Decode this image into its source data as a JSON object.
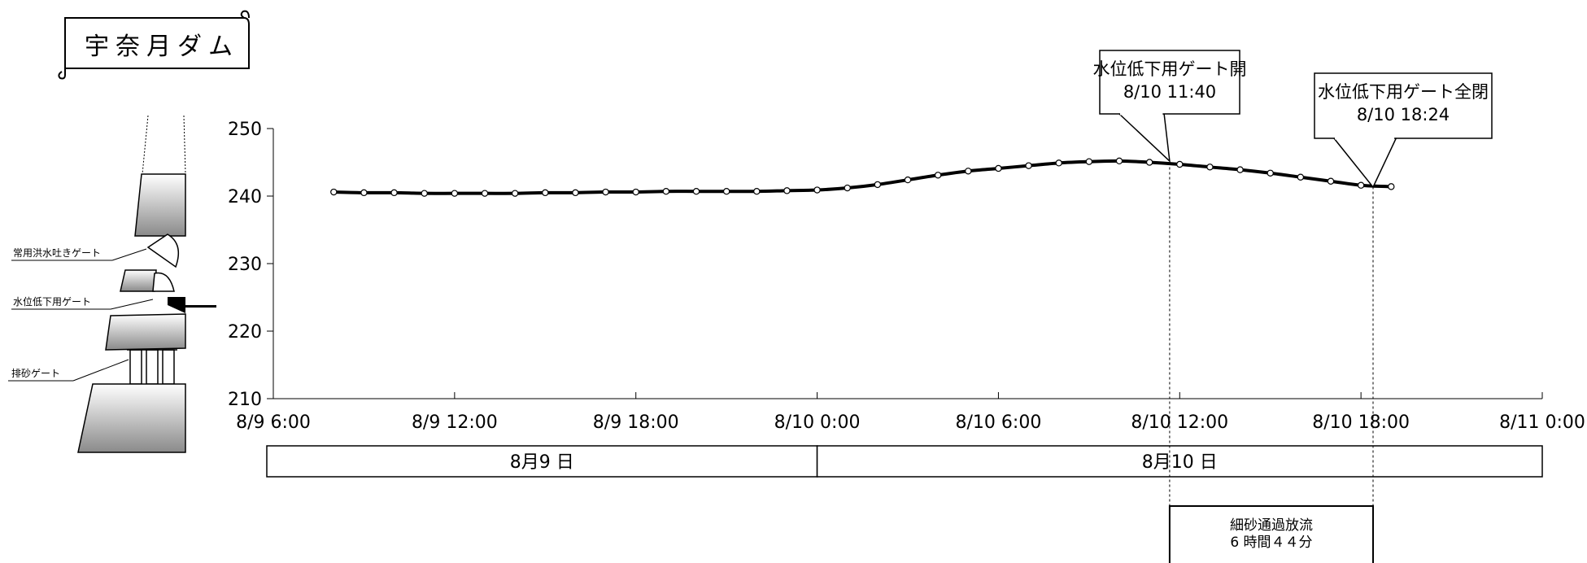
{
  "title": "宇奈月ダム",
  "chart_data": {
    "type": "line",
    "ylim": [
      210,
      250
    ],
    "yticks": [
      "250",
      "240",
      "230",
      "220",
      "210"
    ],
    "xlim_hours": [
      6,
      48
    ],
    "xticks": [
      {
        "label": "8/9 6:00",
        "hour": 6
      },
      {
        "label": "8/9 12:00",
        "hour": 12
      },
      {
        "label": "8/9 18:00",
        "hour": 18
      },
      {
        "label": "8/10 0:00",
        "hour": 24
      },
      {
        "label": "8/10 6:00",
        "hour": 30
      },
      {
        "label": "8/10 12:00",
        "hour": 36
      },
      {
        "label": "8/10 18:00",
        "hour": 42
      },
      {
        "label": "8/11 0:00",
        "hour": 48
      }
    ],
    "points": [
      {
        "hour": 8,
        "value": 240.6
      },
      {
        "hour": 9,
        "value": 240.5
      },
      {
        "hour": 10,
        "value": 240.5
      },
      {
        "hour": 11,
        "value": 240.4
      },
      {
        "hour": 12,
        "value": 240.4
      },
      {
        "hour": 13,
        "value": 240.4
      },
      {
        "hour": 14,
        "value": 240.4
      },
      {
        "hour": 15,
        "value": 240.5
      },
      {
        "hour": 16,
        "value": 240.5
      },
      {
        "hour": 17,
        "value": 240.6
      },
      {
        "hour": 18,
        "value": 240.6
      },
      {
        "hour": 19,
        "value": 240.7
      },
      {
        "hour": 20,
        "value": 240.7
      },
      {
        "hour": 21,
        "value": 240.7
      },
      {
        "hour": 22,
        "value": 240.7
      },
      {
        "hour": 23,
        "value": 240.8
      },
      {
        "hour": 24,
        "value": 240.9
      },
      {
        "hour": 25,
        "value": 241.2
      },
      {
        "hour": 26,
        "value": 241.7
      },
      {
        "hour": 27,
        "value": 242.4
      },
      {
        "hour": 28,
        "value": 243.1
      },
      {
        "hour": 29,
        "value": 243.7
      },
      {
        "hour": 30,
        "value": 244.1
      },
      {
        "hour": 31,
        "value": 244.5
      },
      {
        "hour": 32,
        "value": 244.9
      },
      {
        "hour": 33,
        "value": 245.1
      },
      {
        "hour": 34,
        "value": 245.2
      },
      {
        "hour": 35,
        "value": 245.0
      },
      {
        "hour": 36,
        "value": 244.7
      },
      {
        "hour": 37,
        "value": 244.3
      },
      {
        "hour": 38,
        "value": 243.9
      },
      {
        "hour": 39,
        "value": 243.4
      },
      {
        "hour": 40,
        "value": 242.8
      },
      {
        "hour": 41,
        "value": 242.2
      },
      {
        "hour": 42,
        "value": 241.6
      },
      {
        "hour": 43,
        "value": 241.4
      }
    ],
    "events": [
      {
        "hour": 35.667,
        "line1": "水位低下用ゲート開",
        "line2": "8/10  11:40"
      },
      {
        "hour": 42.4,
        "line1": "水位低下用ゲート全閉",
        "line2": "8/10 18:24"
      }
    ],
    "days": [
      {
        "label": "8月9 日",
        "from_hour": 6,
        "to_hour": 24
      },
      {
        "label": "8月10 日",
        "from_hour": 24,
        "to_hour": 48
      }
    ],
    "duration_box": {
      "line1": "細砂通過放流",
      "line2": "6 時間４４分"
    }
  },
  "gate_labels": {
    "regular_flood": "常用洪水吐きゲート",
    "drawdown": "水位低下用ゲート",
    "sediment": "排砂ゲート"
  },
  "colors": {
    "line": "#000000",
    "marker_fill": "#ffffff",
    "gate_gradient_top": "#ffffff",
    "gate_gradient_bottom": "#8a8a8a"
  }
}
